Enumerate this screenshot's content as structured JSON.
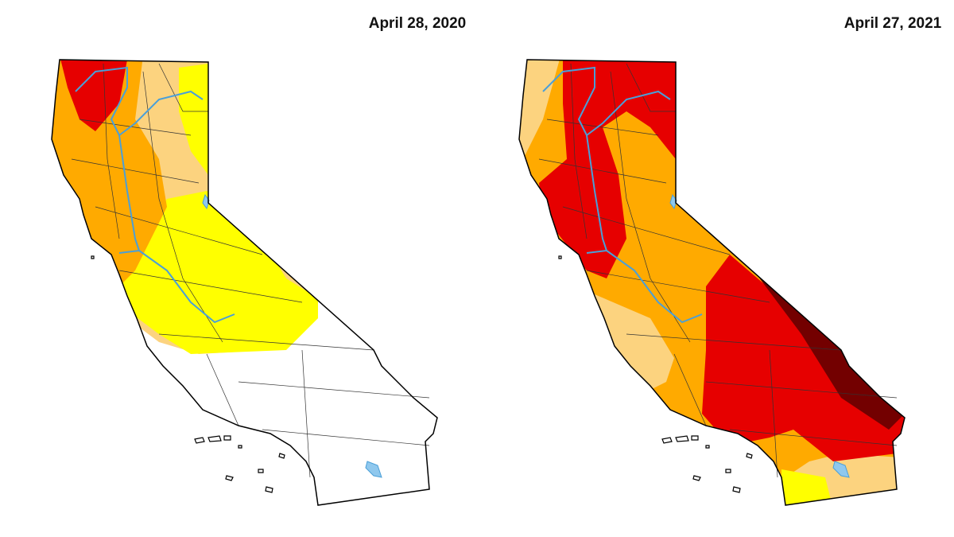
{
  "panels": [
    {
      "title": "April 28, 2020"
    },
    {
      "title": "April 27, 2021"
    }
  ]
}
